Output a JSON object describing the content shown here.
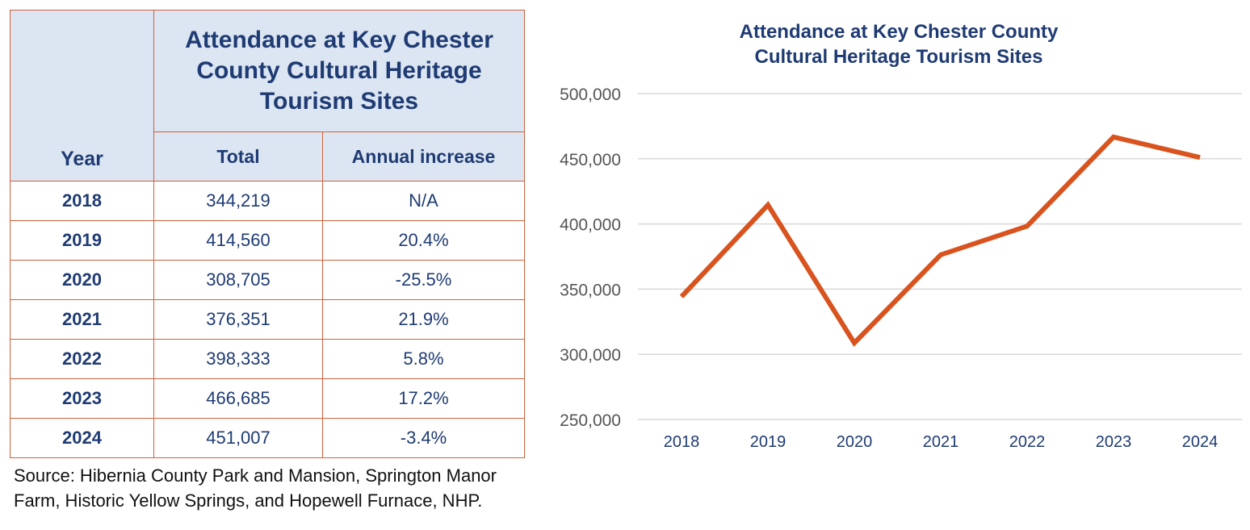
{
  "table": {
    "title_lines": [
      "Attendance at Key Chester",
      "County Cultural Heritage",
      "Tourism Sites"
    ],
    "headers": {
      "year": "Year",
      "total": "Total",
      "increase": "Annual increase"
    },
    "rows": [
      {
        "year": "2018",
        "total": "344,219",
        "increase": "N/A"
      },
      {
        "year": "2019",
        "total": "414,560",
        "increase": "20.4%"
      },
      {
        "year": "2020",
        "total": "308,705",
        "increase": "-25.5%"
      },
      {
        "year": "2021",
        "total": "376,351",
        "increase": "21.9%"
      },
      {
        "year": "2022",
        "total": "398,333",
        "increase": "5.8%"
      },
      {
        "year": "2023",
        "total": "466,685",
        "increase": "17.2%"
      },
      {
        "year": "2024",
        "total": "451,007",
        "increase": "-3.4%"
      }
    ],
    "source": "Source: Hibernia County Park and Mansion, Springton Manor Farm, Historic Yellow Springs, and Hopewell Furnace, NHP."
  },
  "chart_data": {
    "type": "line",
    "title": "Attendance at Key Chester County Cultural Heritage Tourism Sites",
    "title_lines": [
      "Attendance at Key Chester County",
      "Cultural Heritage Tourism Sites"
    ],
    "categories": [
      "2018",
      "2019",
      "2020",
      "2021",
      "2022",
      "2023",
      "2024"
    ],
    "series": [
      {
        "name": "Attendance",
        "values": [
          344219,
          414560,
          308705,
          376351,
          398333,
          466685,
          451007
        ]
      }
    ],
    "ylim": [
      250000,
      500000
    ],
    "yticks": [
      250000,
      300000,
      350000,
      400000,
      450000,
      500000
    ],
    "ytick_labels": [
      "250,000",
      "300,000",
      "350,000",
      "400,000",
      "450,000",
      "500,000"
    ],
    "xlabel": "",
    "ylabel": "",
    "grid": true,
    "legend": "none"
  },
  "colors": {
    "line": "#d9531e",
    "grid": "#d9d9d9",
    "border": "#d0603a",
    "header_bg": "#dce6f2",
    "text": "#1f3b73"
  }
}
